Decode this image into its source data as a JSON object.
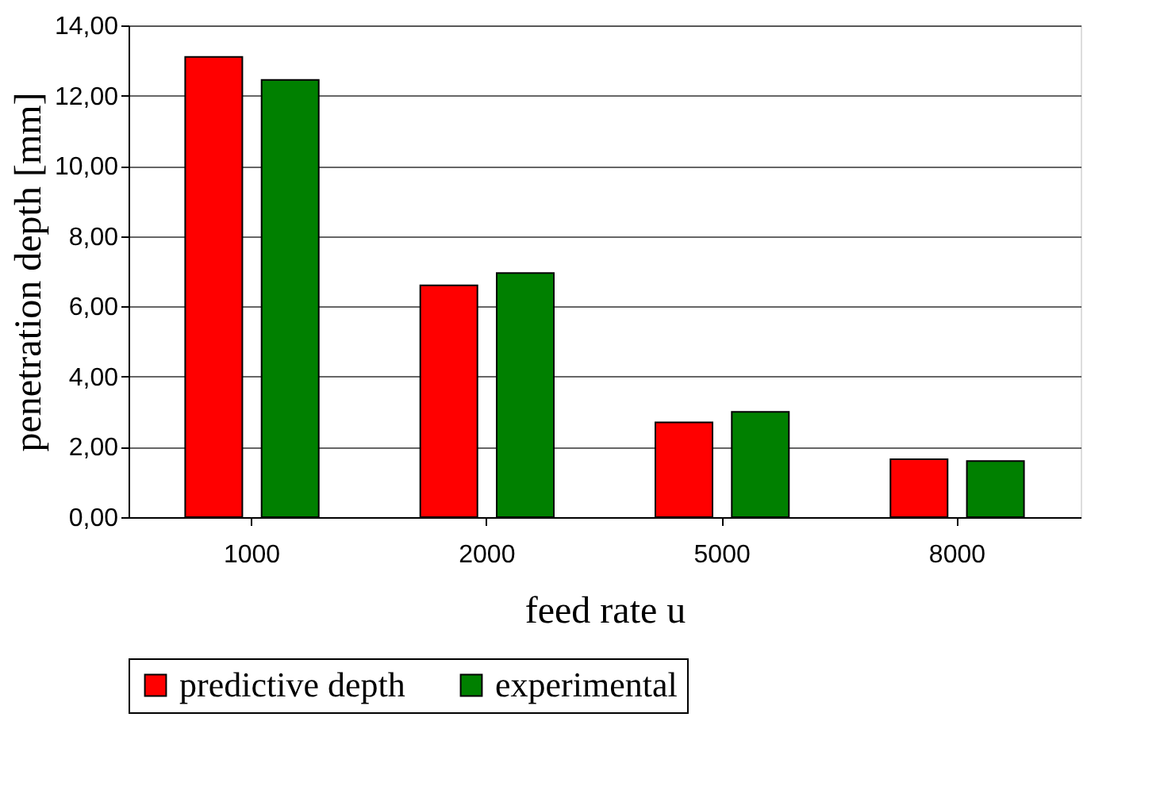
{
  "chart_data": {
    "type": "bar",
    "xlabel": "feed rate u",
    "ylabel": "penetration depth [mm]",
    "categories": [
      "1000",
      "2000",
      "5000",
      "8000"
    ],
    "series": [
      {
        "name": "predictive depth",
        "color": "#ff0000",
        "values": [
          13.1,
          6.6,
          2.7,
          1.65
        ]
      },
      {
        "name": "experimental",
        "color": "#008000",
        "values": [
          12.45,
          6.95,
          3.0,
          1.6
        ]
      }
    ],
    "ylim": [
      0,
      14
    ],
    "yticks": [
      {
        "value": 0,
        "label": "0,00"
      },
      {
        "value": 2,
        "label": "2,00"
      },
      {
        "value": 4,
        "label": "4,00"
      },
      {
        "value": 6,
        "label": "6,00"
      },
      {
        "value": 8,
        "label": "8,00"
      },
      {
        "value": 10,
        "label": "10,00"
      },
      {
        "value": 12,
        "label": "12,00"
      },
      {
        "value": 14,
        "label": "14,00"
      }
    ],
    "grid": "y",
    "legend": "bottom"
  }
}
